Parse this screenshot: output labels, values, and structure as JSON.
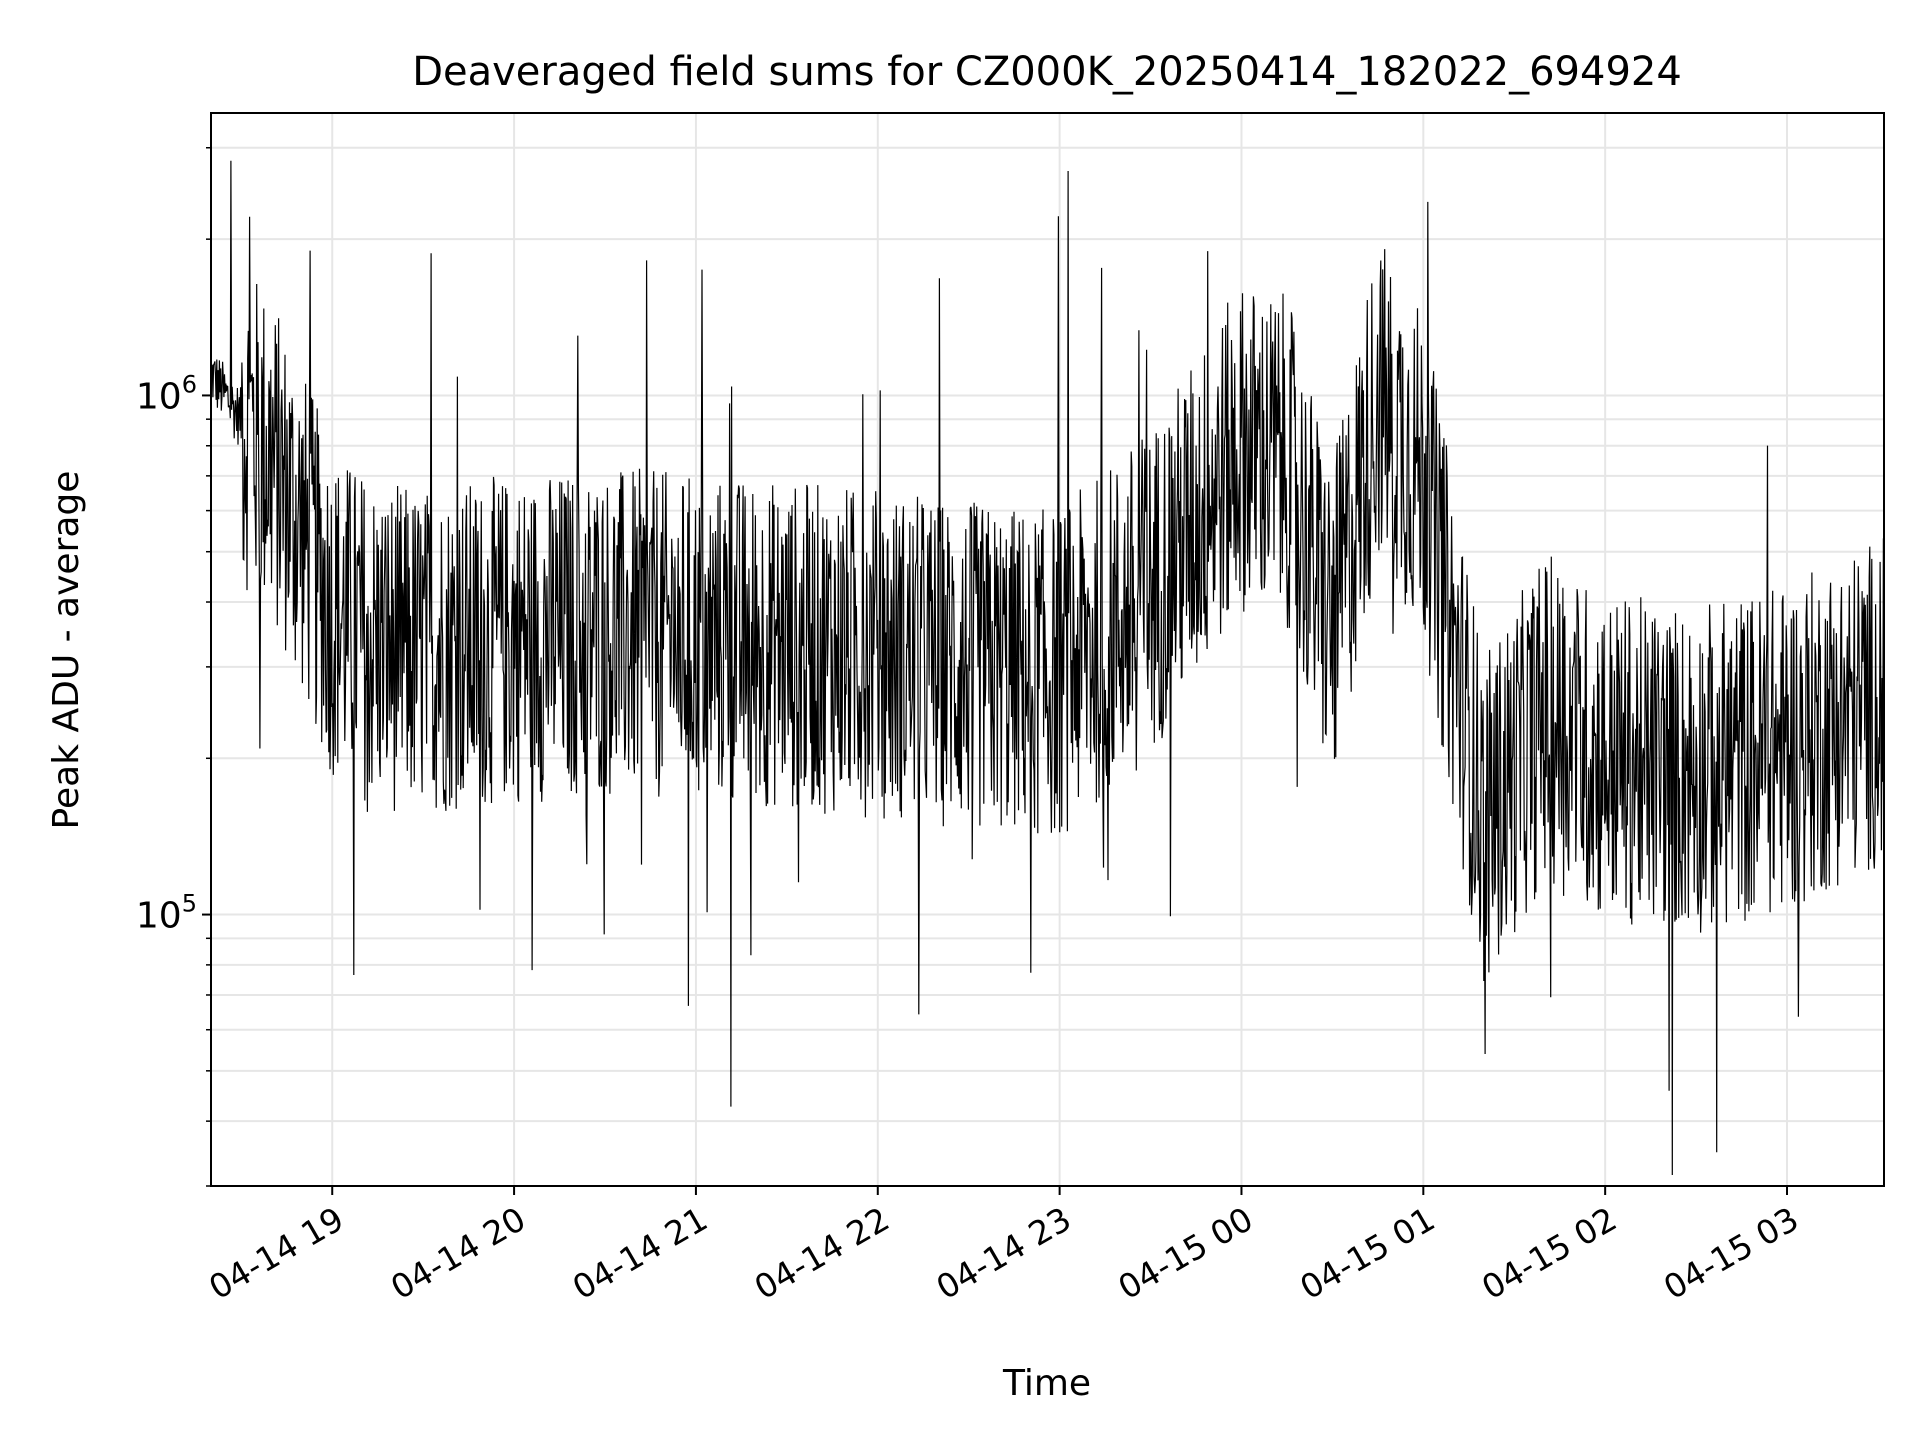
{
  "chart_data": {
    "type": "line",
    "title": "Deaveraged field sums for CZ000K_20250414_182022_694924",
    "xlabel": "Time",
    "ylabel": "Peak ADU - average",
    "xscale": "time",
    "yscale": "log",
    "xlim": [
      "2025-04-14 18:20",
      "2025-04-15 03:32"
    ],
    "ylim": [
      30000,
      3500000
    ],
    "x_ticks": [
      "04-14 19",
      "04-14 20",
      "04-14 21",
      "04-14 22",
      "04-14 23",
      "04-15 00",
      "04-15 01",
      "04-15 02",
      "04-15 03"
    ],
    "x_tick_times": [
      "2025-04-14 19:00",
      "2025-04-14 20:00",
      "2025-04-14 21:00",
      "2025-04-14 22:00",
      "2025-04-14 23:00",
      "2025-04-15 00:00",
      "2025-04-15 01:00",
      "2025-04-15 02:00",
      "2025-04-15 03:00"
    ],
    "y_ticks": [
      {
        "base": "10",
        "exp": "5",
        "value": 100000
      },
      {
        "base": "10",
        "exp": "6",
        "value": 1000000
      }
    ],
    "grid": true,
    "line_color": "#000000",
    "grid_color": "#e6e6e6",
    "series": [
      {
        "x": [
          "2025-04-14 18:20",
          "2025-04-14 18:30",
          "2025-04-14 18:40",
          "2025-04-14 18:50",
          "2025-04-14 19:00",
          "2025-04-14 19:15",
          "2025-04-14 19:30",
          "2025-04-14 19:45",
          "2025-04-14 20:00",
          "2025-04-14 20:30",
          "2025-04-14 21:00",
          "2025-04-14 21:30",
          "2025-04-14 22:00",
          "2025-04-14 22:30",
          "2025-04-14 23:00",
          "2025-04-14 23:30",
          "2025-04-15 00:00",
          "2025-04-15 00:15",
          "2025-04-15 00:30",
          "2025-04-15 00:45",
          "2025-04-15 01:00",
          "2025-04-15 01:20",
          "2025-04-15 01:40",
          "2025-04-15 02:00",
          "2025-04-15 02:30",
          "2025-04-15 03:00",
          "2025-04-15 03:32"
        ],
        "values": [
          1100000,
          900000,
          750000,
          550000,
          380000,
          330000,
          320000,
          330000,
          340000,
          350000,
          340000,
          330000,
          320000,
          300000,
          290000,
          420000,
          800000,
          750000,
          350000,
          1000000,
          700000,
          150000,
          240000,
          200000,
          190000,
          210000,
          260000
        ]
      }
    ]
  }
}
